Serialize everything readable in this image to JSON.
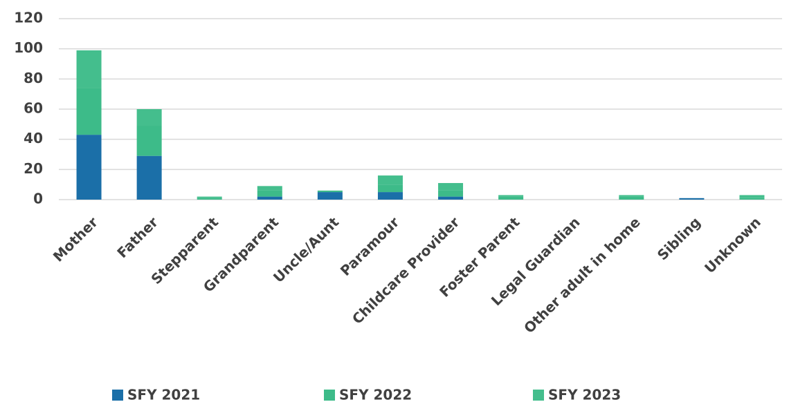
{
  "chart_data": {
    "type": "stacked_bar",
    "categories": [
      "Mother",
      "Father",
      "Stepparent",
      "Grandparent",
      "Uncle/Aunt",
      "Paramour",
      "Childcare Provider",
      "Foster Parent",
      "Legal Guardian",
      "Other adult in home",
      "Sibling",
      "Unknown"
    ],
    "series": [
      {
        "name": "SFY 2021",
        "color": "#1b6fa8",
        "values": [
          43,
          29,
          0,
          2,
          5,
          5,
          2,
          0,
          0,
          0,
          1,
          0
        ]
      },
      {
        "name": "SFY 2022",
        "color": "#3dbb89",
        "values": [
          31,
          20,
          1,
          4,
          1,
          5,
          4,
          2,
          0,
          2,
          0,
          1
        ]
      },
      {
        "name": "SFY 2023",
        "color": "#44be8d",
        "values": [
          25,
          11,
          1,
          3,
          0,
          6,
          5,
          1,
          0,
          1,
          0,
          2
        ]
      }
    ],
    "ylim": [
      0,
      120
    ],
    "yticks": [
      0,
      20,
      40,
      60,
      80,
      100,
      120
    ],
    "grid": true,
    "legend": "bottom"
  }
}
